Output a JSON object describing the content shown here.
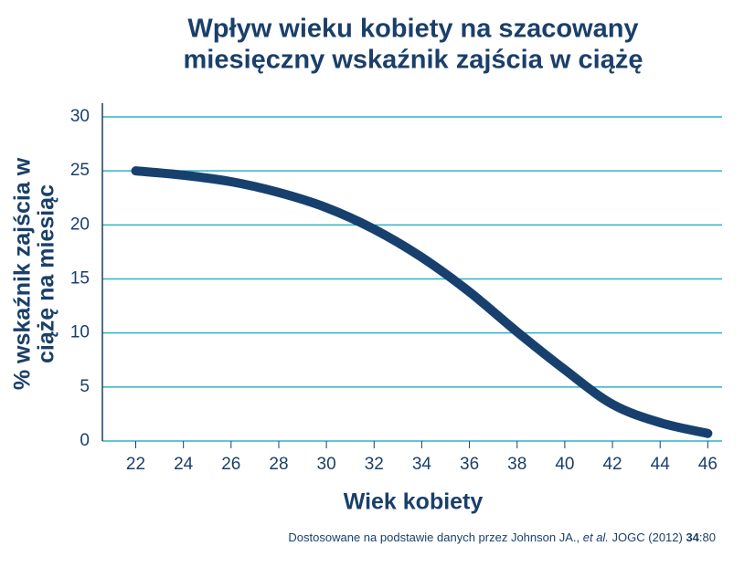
{
  "chart_data": {
    "type": "line",
    "title": [
      "Wpływ wieku kobiety na szacowany",
      "miesięczny wskaźnik zajścia w ciążę"
    ],
    "ylabel": [
      "% wskaźnik zajścia w",
      "ciążę na miesiąc"
    ],
    "xlabel": "Wiek kobiety",
    "source": [
      "Dostosowane na podstawie danych przez Johnson JA., ",
      "et al.",
      " JOGC (2012) ",
      "34",
      ":80"
    ],
    "x": [
      22,
      24,
      26,
      28,
      30,
      32,
      34,
      36,
      38,
      40,
      42,
      44,
      46
    ],
    "series": [
      {
        "name": null,
        "color": "#17406e",
        "values": [
          25,
          24.6,
          24,
          23,
          21.6,
          19.6,
          17,
          13.8,
          10.1,
          6.6,
          3.4,
          1.7,
          0.7
        ]
      }
    ],
    "xlim": [
      20.6,
      46.6
    ],
    "xticks": [
      22,
      24,
      26,
      28,
      30,
      32,
      34,
      36,
      38,
      40,
      42,
      44,
      46
    ],
    "ylim": [
      0,
      30
    ],
    "yticks": [
      0,
      5,
      10,
      15,
      20,
      25,
      30
    ],
    "grid": true,
    "grid_color": "#2bb3c6"
  }
}
